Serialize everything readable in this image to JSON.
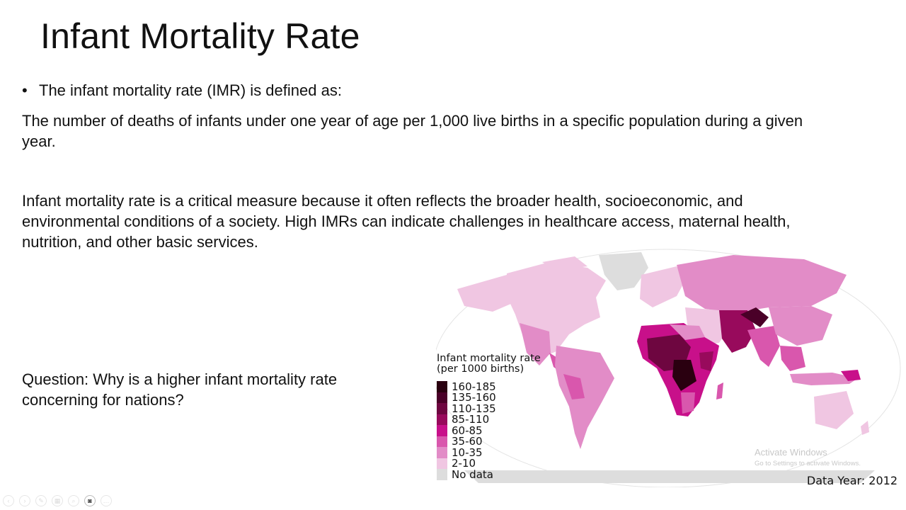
{
  "slide": {
    "title": "Infant Mortality Rate",
    "bullet_marker": "•",
    "bullet_text": "The infant mortality rate (IMR) is defined as:",
    "definition": "The number of deaths of infants under one year of age per 1,000 live births in a specific population during a given year.",
    "critical_text": "Infant mortality rate is a critical measure because it often reflects the broader health, socioeconomic, and environmental conditions of a society. High IMRs can indicate challenges in healthcare access, maternal health, nutrition, and other basic services.",
    "question": "Question: Why is a higher infant mortality rate concerning for nations?"
  },
  "map": {
    "legend_title_1": "Infant mortality rate",
    "legend_title_2": "(per 1000 births)",
    "legend": [
      {
        "label": "160-185",
        "color": "#2a0010"
      },
      {
        "label": "135-160",
        "color": "#4a0028"
      },
      {
        "label": "110-135",
        "color": "#6e0640"
      },
      {
        "label": "85-110",
        "color": "#980a5c"
      },
      {
        "label": "60-85",
        "color": "#c8108a"
      },
      {
        "label": "35-60",
        "color": "#d957ad"
      },
      {
        "label": "10-35",
        "color": "#e28cc7"
      },
      {
        "label": "2-10",
        "color": "#f0c6e2"
      },
      {
        "label": "No data",
        "color": "#dddddd"
      }
    ],
    "data_year": "Data Year: 2012"
  },
  "watermark": {
    "title": "Activate Windows",
    "subtitle": "Go to Settings to activate Windows."
  },
  "toolbar": {
    "buttons": [
      {
        "name": "previous-slide-icon",
        "glyph": "‹"
      },
      {
        "name": "next-slide-icon",
        "glyph": "›"
      },
      {
        "name": "pen-icon",
        "glyph": "✎"
      },
      {
        "name": "slides-grid-icon",
        "glyph": "▦"
      },
      {
        "name": "zoom-icon",
        "glyph": "⌕"
      },
      {
        "name": "camera-icon",
        "glyph": "◙"
      },
      {
        "name": "more-options-icon",
        "glyph": "…"
      }
    ]
  }
}
